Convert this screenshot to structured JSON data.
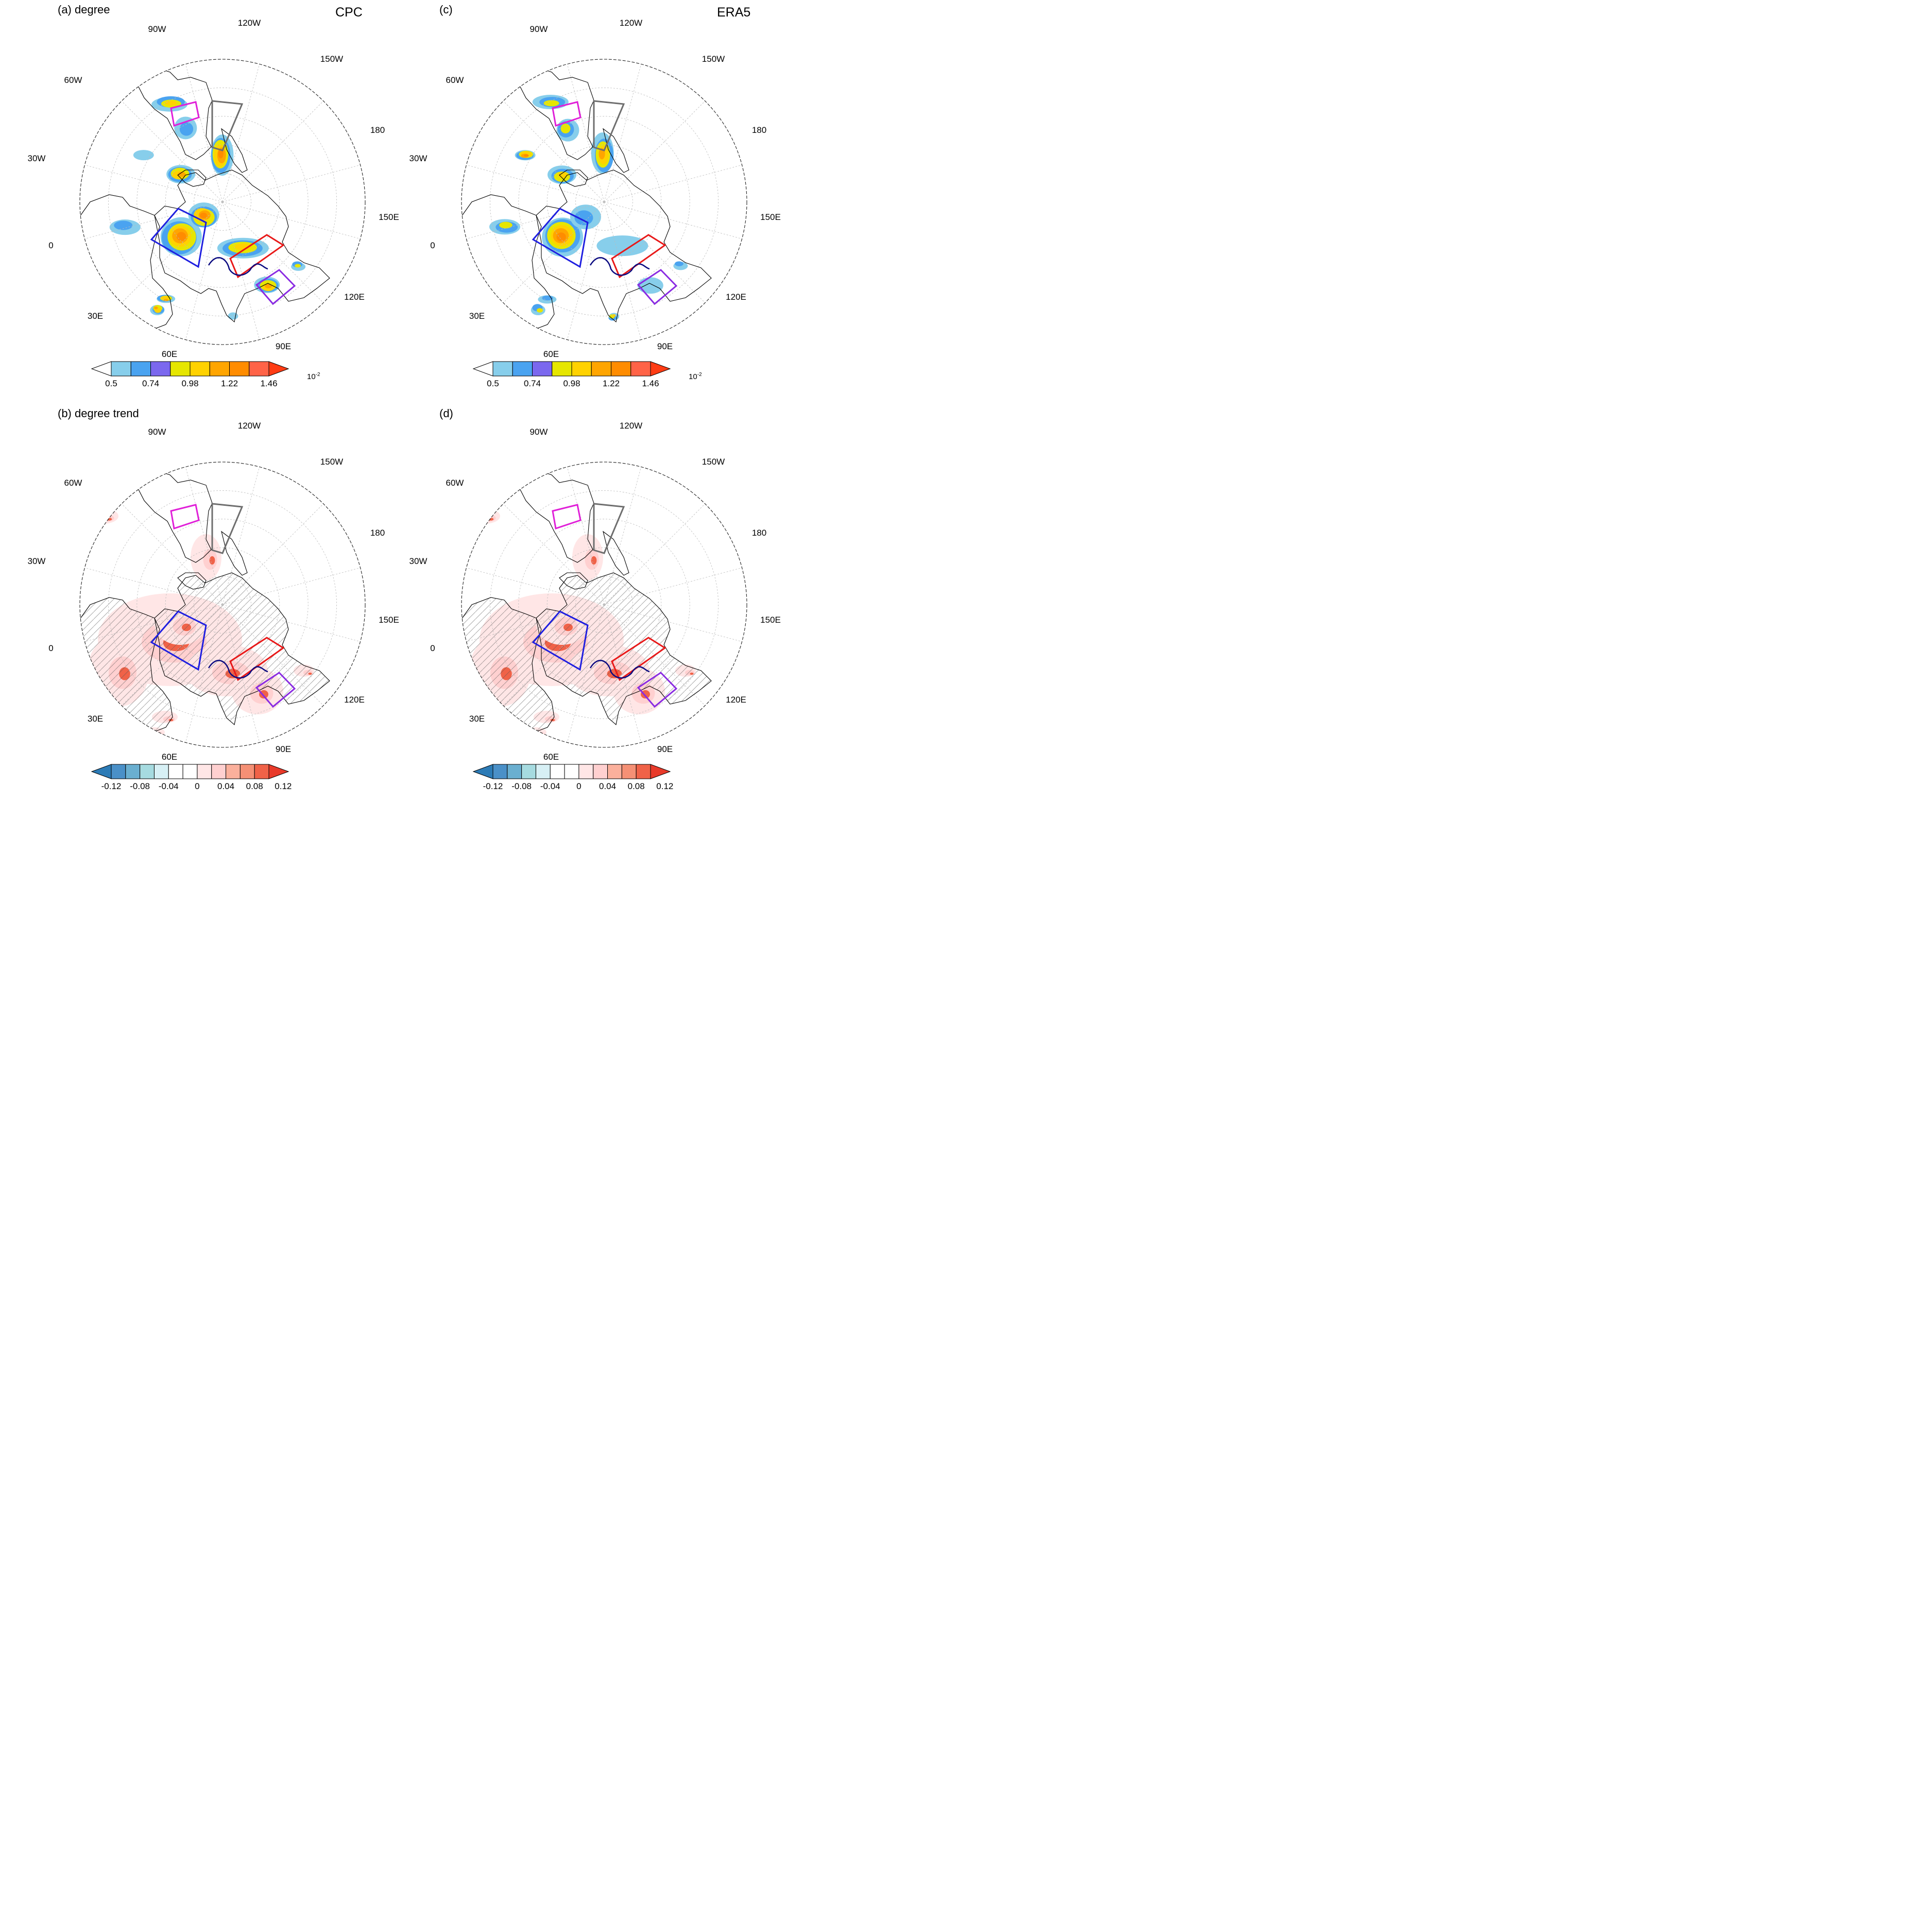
{
  "figure": {
    "panels": [
      {
        "id": "a",
        "title": "(a) degree",
        "source": "CPC",
        "colorbar": "degree"
      },
      {
        "id": "c",
        "title": "(c)",
        "source": "ERA5",
        "colorbar": "degree"
      },
      {
        "id": "b",
        "title": "(b) degree trend",
        "source": "",
        "colorbar": "trend"
      },
      {
        "id": "d",
        "title": "(d)",
        "source": "",
        "colorbar": "trend"
      }
    ],
    "longitude_labels": [
      "90W",
      "120W",
      "150W",
      "180",
      "150E",
      "120E",
      "90E",
      "60E",
      "30E",
      "0",
      "30W",
      "60W"
    ],
    "colorbars": {
      "degree": {
        "ticks": [
          "0.5",
          "0.74",
          "0.98",
          "1.22",
          "1.46"
        ],
        "unit_base": "10",
        "unit_exp": "-2",
        "colors": [
          "#ffffff",
          "#87ceeb",
          "#4aa3f0",
          "#7b68ee",
          "#e6e600",
          "#ffd200",
          "#ffa500",
          "#ff8c00",
          "#ff6347",
          "#ff3c14"
        ]
      },
      "trend": {
        "ticks": [
          "-0.12",
          "-0.08",
          "-0.04",
          "0",
          "0.04",
          "0.08",
          "0.12"
        ],
        "colors": [
          "#2c7bb6",
          "#4a90c8",
          "#6aafd0",
          "#a6dbe0",
          "#d7f0f5",
          "#ffffff",
          "#ffffff",
          "#ffe6e6",
          "#ffd0d0",
          "#fbb09c",
          "#f59075",
          "#f06248",
          "#e83a2a"
        ]
      }
    },
    "region_colors": {
      "magenta": "#e020d8",
      "gray": "#6e6e6e",
      "blue": "#1f1fe0",
      "red": "#e81818",
      "purple": "#8a2be2",
      "navy": "#0a0a80"
    }
  }
}
